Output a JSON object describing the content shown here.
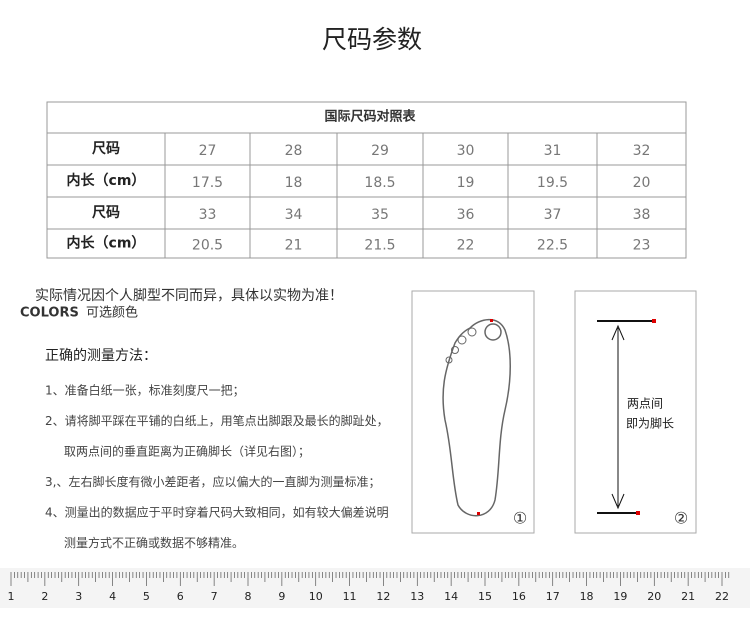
{
  "title": "尺码参数",
  "table": {
    "caption": "国际尺码对照表",
    "rows": [
      [
        "尺码",
        "27",
        "28",
        "29",
        "30",
        "31",
        "32"
      ],
      [
        "内长（cm）",
        "17.5",
        "18",
        "18.5",
        "19",
        "19.5",
        "20"
      ],
      [
        "尺码",
        "33",
        "34",
        "35",
        "36",
        "37",
        "38"
      ],
      [
        "内长（cm）",
        "20.5",
        "21",
        "21.5",
        "22",
        "22.5",
        "23"
      ]
    ]
  },
  "note": "实际情况因个人脚型不同而异，具体以实物为准！",
  "colors": {
    "label": "COLORS",
    "text": "可选颜色"
  },
  "instructions": {
    "heading": "正确的测量方法：",
    "items": [
      [
        "1、准备白纸一张，标准刻度尺一把；"
      ],
      [
        "2、请将脚平踩在平铺的白纸上，用笔点出脚跟及最长的脚趾处，",
        "取两点间的垂直距离为正确脚长（详见右图）；"
      ],
      [
        "3,、左右脚长度有微小差距者，应以偏大的一直脚为测量标准；"
      ],
      [
        "4、测量出的数据应于平时穿着尺码大致相同，如有较大偏差说明",
        "测量方式不正确或数据不够精准。"
      ]
    ]
  },
  "diagram": {
    "foot_label": "①",
    "length_label": "②",
    "length_text": [
      "两点间",
      "即为脚长"
    ]
  },
  "ruler": [
    "1",
    "2",
    "3",
    "4",
    "5",
    "6",
    "7",
    "8",
    "9",
    "10",
    "11",
    "12",
    "13",
    "14",
    "15",
    "16",
    "17",
    "18",
    "19",
    "20",
    "21",
    "22"
  ]
}
